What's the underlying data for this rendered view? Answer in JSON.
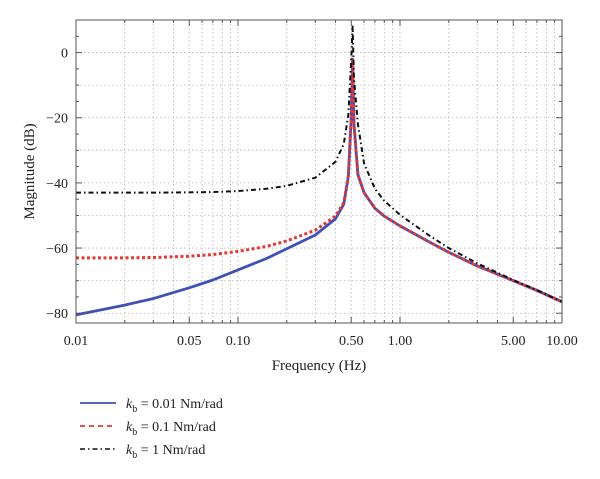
{
  "chart_data": {
    "type": "line",
    "xlabel": "Frequency (Hz)",
    "ylabel": "Magnitude (dB)",
    "xscale": "log",
    "xlim": [
      0.01,
      10
    ],
    "ylim": [
      -83,
      10
    ],
    "grid": true,
    "x_ticks": [
      {
        "value": 0.01,
        "label": "0.01"
      },
      {
        "value": 0.05,
        "label": "0.05"
      },
      {
        "value": 0.1,
        "label": "0.10"
      },
      {
        "value": 0.5,
        "label": "0.50"
      },
      {
        "value": 1,
        "label": "1.00"
      },
      {
        "value": 5,
        "label": "5.00"
      },
      {
        "value": 10,
        "label": "10.00"
      }
    ],
    "y_ticks": [
      {
        "value": 0,
        "label": "0"
      },
      {
        "value": -20,
        "label": "−20"
      },
      {
        "value": -40,
        "label": "−40"
      },
      {
        "value": -60,
        "label": "−60"
      },
      {
        "value": -80,
        "label": "−80"
      }
    ],
    "legend_position": "bottom-left",
    "series": [
      {
        "name": "0.01 Nm/rad",
        "legend_symbol": "k",
        "legend_subscript": "b",
        "legend_equals": "=",
        "color": "#3f51b5",
        "style": "solid",
        "x": [
          0.01,
          0.02,
          0.03,
          0.05,
          0.07,
          0.1,
          0.15,
          0.2,
          0.3,
          0.4,
          0.45,
          0.48,
          0.5,
          0.51,
          0.52,
          0.55,
          0.6,
          0.7,
          0.8,
          1.0,
          1.5,
          2.0,
          3.0,
          5.0,
          7.0,
          10.0
        ],
        "y": [
          -80.5,
          -77.5,
          -75.5,
          -72.2,
          -69.8,
          -66.7,
          -63.2,
          -60.2,
          -56.0,
          -51.0,
          -46.5,
          -38.0,
          -20.0,
          -2.0,
          -22.0,
          -37.5,
          -43.0,
          -47.8,
          -50.2,
          -53.2,
          -58.0,
          -61.3,
          -65.5,
          -70.0,
          -73.0,
          -76.5
        ]
      },
      {
        "name": "0.1 Nm/rad",
        "legend_symbol": "k",
        "legend_subscript": "b",
        "legend_equals": "=",
        "color": "#e53935",
        "style": "dashed",
        "x": [
          0.01,
          0.02,
          0.03,
          0.05,
          0.07,
          0.1,
          0.15,
          0.2,
          0.3,
          0.4,
          0.45,
          0.48,
          0.5,
          0.51,
          0.52,
          0.55,
          0.6,
          0.7,
          0.8,
          1.0,
          1.5,
          2.0,
          3.0,
          5.0,
          7.0,
          10.0
        ],
        "y": [
          -63.0,
          -63.0,
          -62.9,
          -62.5,
          -62.0,
          -61.0,
          -59.5,
          -57.8,
          -54.5,
          -50.2,
          -46.0,
          -37.8,
          -20.0,
          -2.0,
          -22.0,
          -37.5,
          -43.0,
          -47.8,
          -50.2,
          -53.2,
          -58.0,
          -61.3,
          -65.5,
          -70.0,
          -73.0,
          -76.5
        ]
      },
      {
        "name": "1 Nm/rad",
        "legend_symbol": "k",
        "legend_subscript": "b",
        "legend_equals": "=",
        "color": "#111111",
        "style": "dashdot",
        "x": [
          0.01,
          0.02,
          0.03,
          0.05,
          0.07,
          0.1,
          0.15,
          0.2,
          0.3,
          0.4,
          0.45,
          0.48,
          0.5,
          0.51,
          0.52,
          0.55,
          0.6,
          0.7,
          0.8,
          1.0,
          1.5,
          2.0,
          3.0,
          5.0,
          7.0,
          10.0
        ],
        "y": [
          -43.0,
          -43.0,
          -43.0,
          -42.9,
          -42.8,
          -42.5,
          -41.8,
          -40.9,
          -38.4,
          -33.5,
          -28.0,
          -19.0,
          -2.0,
          8.0,
          -8.0,
          -22.0,
          -34.0,
          -41.8,
          -45.5,
          -49.8,
          -56.0,
          -60.0,
          -64.7,
          -69.8,
          -72.9,
          -76.5
        ]
      }
    ]
  }
}
